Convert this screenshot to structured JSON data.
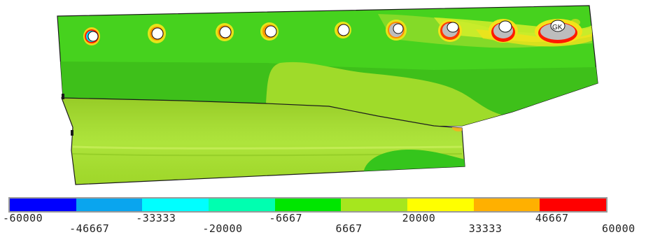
{
  "legend": {
    "colors": [
      "#0000ff",
      "#0aa5ee",
      "#00ffff",
      "#00ffb0",
      "#00e600",
      "#a6e61e",
      "#ffff00",
      "#ffb000",
      "#ff0000"
    ],
    "ticks": [
      "-60000",
      "-46667",
      "-33333",
      "-20000",
      "-6667",
      "6667",
      "20000",
      "33333",
      "46667",
      "60000"
    ]
  },
  "model": {
    "hole_count": 10,
    "hole_label": "GK"
  }
}
